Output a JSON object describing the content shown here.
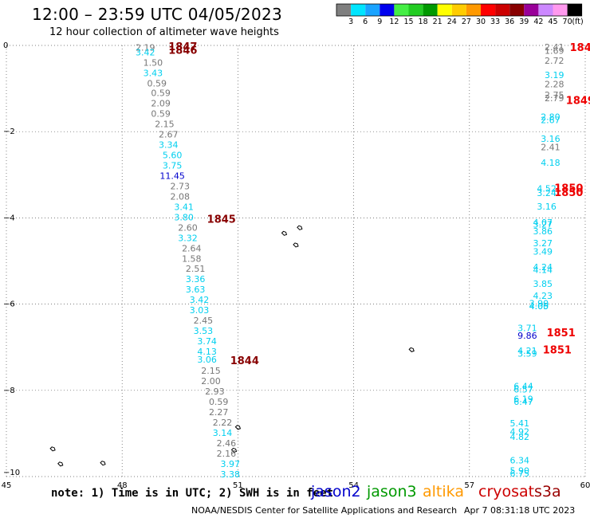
{
  "title": "12:00 – 23:59 UTC 04/05/2023",
  "subtitle": "12 hour collection of altimeter wave heights",
  "note": "note: 1) Time is in UTC; 2) SWH is in feet",
  "satellites": [
    {
      "name": "jason2",
      "color": "#0000cc"
    },
    {
      "name": "jason3",
      "color": "#009900"
    },
    {
      "name": "altika",
      "color": "#ff9900"
    },
    {
      "name": "cryosat",
      "color": "#cc0000"
    },
    {
      "name": "s3a",
      "color": "#990000"
    }
  ],
  "credit": "NOAA/NESDIS Center for Satellite Applications and Research",
  "timestamp": "Apr  7 08:31:18 UTC 2023",
  "colors": {
    "gray_values": "#777777",
    "cyan_values": "#00cfef",
    "blue_values": "#0000cc",
    "time_red": "#ee0000",
    "time_darkred": "#880000",
    "land": "#000000",
    "grid": "#555555"
  },
  "legend": {
    "unit": "(ft)",
    "bins": [
      {
        "label": "3",
        "color": "#7f7f7f"
      },
      {
        "label": "6",
        "color": "#00e5ff"
      },
      {
        "label": "9",
        "color": "#1aa3ff"
      },
      {
        "label": "12",
        "color": "#0000ee"
      },
      {
        "label": "15",
        "color": "#44ee44"
      },
      {
        "label": "18",
        "color": "#22cc22"
      },
      {
        "label": "21",
        "color": "#009900"
      },
      {
        "label": "24",
        "color": "#ffff00"
      },
      {
        "label": "27",
        "color": "#ffcc00"
      },
      {
        "label": "30",
        "color": "#ff9900"
      },
      {
        "label": "33",
        "color": "#ff0000"
      },
      {
        "label": "36",
        "color": "#cc0000"
      },
      {
        "label": "39",
        "color": "#880000"
      },
      {
        "label": "42",
        "color": "#990099"
      },
      {
        "label": "45",
        "color": "#cc88ff"
      },
      {
        "label": "70",
        "color": "#ff99ee"
      },
      {
        "label": "",
        "color": "#000000"
      }
    ]
  },
  "chart_data": {
    "type": "scatter",
    "xlim": [
      45,
      60
    ],
    "ylim": [
      -10,
      0
    ],
    "x_ticks": [
      {
        "v": 45,
        "label": "45"
      },
      {
        "v": 48,
        "label": "48"
      },
      {
        "v": 51,
        "label": "51"
      },
      {
        "v": 54,
        "label": "54"
      },
      {
        "v": 57,
        "label": "57"
      },
      {
        "v": 60,
        "label": "60"
      }
    ],
    "y_ticks": [
      {
        "v": 0,
        "label": "0"
      },
      {
        "v": -2,
        "label": "−2"
      },
      {
        "v": -4,
        "label": "−4"
      },
      {
        "v": -6,
        "label": "−6"
      },
      {
        "v": -8,
        "label": "−8"
      },
      {
        "v": -10,
        "label": "−10"
      }
    ],
    "grid": true,
    "tracks": [
      {
        "points": [
          {
            "lon": 48.6,
            "lat": -0.05,
            "v": "2.19",
            "c": "gray"
          },
          {
            "lon": 48.6,
            "lat": -0.16,
            "v": "3.42",
            "c": "cyan"
          },
          {
            "lon": 48.8,
            "lat": -0.4,
            "v": "1.50",
            "c": "gray"
          },
          {
            "lon": 48.8,
            "lat": -0.64,
            "v": "3.43",
            "c": "cyan"
          },
          {
            "lon": 48.9,
            "lat": -0.88,
            "v": "0.59",
            "c": "gray"
          },
          {
            "lon": 49.0,
            "lat": -1.1,
            "v": "0.59",
            "c": "gray"
          },
          {
            "lon": 49.0,
            "lat": -1.34,
            "v": "2.09",
            "c": "gray"
          },
          {
            "lon": 49.0,
            "lat": -1.58,
            "v": "0.59",
            "c": "gray"
          },
          {
            "lon": 49.1,
            "lat": -1.82,
            "v": "2.15",
            "c": "gray"
          },
          {
            "lon": 49.2,
            "lat": -2.06,
            "v": "2.67",
            "c": "gray"
          },
          {
            "lon": 49.2,
            "lat": -2.3,
            "v": "3.34",
            "c": "cyan"
          },
          {
            "lon": 49.3,
            "lat": -2.54,
            "v": "5.60",
            "c": "cyan"
          },
          {
            "lon": 49.3,
            "lat": -2.78,
            "v": "3.75",
            "c": "cyan"
          },
          {
            "lon": 49.3,
            "lat": -3.02,
            "v": "11.45",
            "c": "blue"
          },
          {
            "lon": 49.5,
            "lat": -3.26,
            "v": "2.73",
            "c": "gray"
          },
          {
            "lon": 49.5,
            "lat": -3.5,
            "v": "2.08",
            "c": "gray"
          },
          {
            "lon": 49.6,
            "lat": -3.74,
            "v": "3.41",
            "c": "cyan"
          },
          {
            "lon": 49.6,
            "lat": -3.98,
            "v": "3.80",
            "c": "cyan"
          },
          {
            "lon": 49.7,
            "lat": -4.22,
            "v": "2.60",
            "c": "gray"
          },
          {
            "lon": 49.7,
            "lat": -4.46,
            "v": "3.32",
            "c": "cyan"
          },
          {
            "lon": 49.8,
            "lat": -4.7,
            "v": "2.64",
            "c": "gray"
          },
          {
            "lon": 49.8,
            "lat": -4.94,
            "v": "1.58",
            "c": "gray"
          },
          {
            "lon": 49.9,
            "lat": -5.18,
            "v": "2.51",
            "c": "gray"
          },
          {
            "lon": 49.9,
            "lat": -5.42,
            "v": "3.36",
            "c": "cyan"
          },
          {
            "lon": 49.9,
            "lat": -5.66,
            "v": "3.63",
            "c": "cyan"
          },
          {
            "lon": 50.0,
            "lat": -5.9,
            "v": "3.42",
            "c": "cyan"
          },
          {
            "lon": 50.0,
            "lat": -6.14,
            "v": "3.03",
            "c": "cyan"
          },
          {
            "lon": 50.1,
            "lat": -6.38,
            "v": "2.45",
            "c": "gray"
          },
          {
            "lon": 50.1,
            "lat": -6.62,
            "v": "3.53",
            "c": "cyan"
          },
          {
            "lon": 50.2,
            "lat": -6.86,
            "v": "3.74",
            "c": "cyan"
          },
          {
            "lon": 50.2,
            "lat": -7.1,
            "v": "4.13",
            "c": "cyan"
          },
          {
            "lon": 50.2,
            "lat": -7.28,
            "v": "3.06",
            "c": "cyan"
          },
          {
            "lon": 50.3,
            "lat": -7.54,
            "v": "2.15",
            "c": "gray"
          },
          {
            "lon": 50.3,
            "lat": -7.78,
            "v": "2.00",
            "c": "gray"
          },
          {
            "lon": 50.4,
            "lat": -8.02,
            "v": "2.93",
            "c": "gray"
          },
          {
            "lon": 50.5,
            "lat": -8.26,
            "v": "0.59",
            "c": "gray"
          },
          {
            "lon": 50.5,
            "lat": -8.5,
            "v": "2.27",
            "c": "gray"
          },
          {
            "lon": 50.6,
            "lat": -8.74,
            "v": "2.22",
            "c": "gray"
          },
          {
            "lon": 50.6,
            "lat": -8.98,
            "v": "3.14",
            "c": "cyan"
          },
          {
            "lon": 50.7,
            "lat": -9.22,
            "v": "2.46",
            "c": "gray"
          },
          {
            "lon": 50.7,
            "lat": -9.46,
            "v": "2.16",
            "c": "gray"
          },
          {
            "lon": 50.8,
            "lat": -9.7,
            "v": "3.97",
            "c": "cyan"
          },
          {
            "lon": 50.8,
            "lat": -9.94,
            "v": "3.38",
            "c": "cyan"
          }
        ]
      },
      {
        "points": [
          {
            "lon": 59.2,
            "lat": -0.04,
            "v": "2.41",
            "c": "gray"
          },
          {
            "lon": 59.2,
            "lat": -0.12,
            "v": "1.69",
            "c": "gray"
          },
          {
            "lon": 59.2,
            "lat": -0.35,
            "v": "2.72",
            "c": "gray"
          },
          {
            "lon": 59.2,
            "lat": -0.68,
            "v": "3.19",
            "c": "cyan"
          },
          {
            "lon": 59.2,
            "lat": -0.9,
            "v": "2.28",
            "c": "gray"
          },
          {
            "lon": 59.2,
            "lat": -1.15,
            "v": "2.75",
            "c": "gray"
          },
          {
            "lon": 59.2,
            "lat": -1.22,
            "v": "2.79",
            "c": "gray"
          },
          {
            "lon": 59.1,
            "lat": -1.65,
            "v": "2.80",
            "c": "cyan"
          },
          {
            "lon": 59.1,
            "lat": -1.73,
            "v": "2.67",
            "c": "cyan"
          },
          {
            "lon": 59.1,
            "lat": -2.16,
            "v": "3.16",
            "c": "cyan"
          },
          {
            "lon": 59.1,
            "lat": -2.36,
            "v": "2.41",
            "c": "gray"
          },
          {
            "lon": 59.1,
            "lat": -2.72,
            "v": "4.18",
            "c": "cyan"
          },
          {
            "lon": 59.0,
            "lat": -3.32,
            "v": "4.52",
            "c": "cyan"
          },
          {
            "lon": 59.0,
            "lat": -3.42,
            "v": "3.24",
            "c": "cyan"
          },
          {
            "lon": 59.0,
            "lat": -3.73,
            "v": "3.16",
            "c": "cyan"
          },
          {
            "lon": 58.9,
            "lat": -4.1,
            "v": "4.07",
            "c": "cyan"
          },
          {
            "lon": 58.9,
            "lat": -4.15,
            "v": "3.27",
            "c": "cyan"
          },
          {
            "lon": 58.9,
            "lat": -4.31,
            "v": "3.86",
            "c": "cyan"
          },
          {
            "lon": 58.9,
            "lat": -4.58,
            "v": "3.27",
            "c": "cyan"
          },
          {
            "lon": 58.9,
            "lat": -4.78,
            "v": "3.49",
            "c": "cyan"
          },
          {
            "lon": 58.9,
            "lat": -5.14,
            "v": "4.24",
            "c": "cyan"
          },
          {
            "lon": 58.9,
            "lat": -5.2,
            "v": "4.14",
            "c": "cyan"
          },
          {
            "lon": 58.9,
            "lat": -5.53,
            "v": "3.85",
            "c": "cyan"
          },
          {
            "lon": 58.9,
            "lat": -5.8,
            "v": "4.23",
            "c": "cyan"
          },
          {
            "lon": 58.8,
            "lat": -5.98,
            "v": "3.90",
            "c": "cyan"
          },
          {
            "lon": 58.8,
            "lat": -6.04,
            "v": "4.05",
            "c": "cyan"
          },
          {
            "lon": 58.8,
            "lat": -6.04,
            "v": "4.00",
            "c": "cyan"
          }
        ]
      },
      {
        "points": [
          {
            "lon": 58.5,
            "lat": -6.55,
            "v": "3.71",
            "c": "cyan"
          },
          {
            "lon": 58.5,
            "lat": -6.73,
            "v": "9.86",
            "c": "blue"
          },
          {
            "lon": 58.5,
            "lat": -7.08,
            "v": "4.21",
            "c": "cyan"
          },
          {
            "lon": 58.5,
            "lat": -7.14,
            "v": "3.59",
            "c": "cyan"
          },
          {
            "lon": 58.4,
            "lat": -7.9,
            "v": "6.44",
            "c": "cyan"
          },
          {
            "lon": 58.4,
            "lat": -7.98,
            "v": "6.57",
            "c": "cyan"
          },
          {
            "lon": 58.4,
            "lat": -8.2,
            "v": "6.19",
            "c": "cyan"
          },
          {
            "lon": 58.4,
            "lat": -8.26,
            "v": "6.47",
            "c": "cyan"
          },
          {
            "lon": 58.3,
            "lat": -8.76,
            "v": "5.41",
            "c": "cyan"
          },
          {
            "lon": 58.3,
            "lat": -8.96,
            "v": "4.92",
            "c": "cyan"
          },
          {
            "lon": 58.3,
            "lat": -9.08,
            "v": "4.82",
            "c": "cyan"
          },
          {
            "lon": 58.3,
            "lat": -9.62,
            "v": "6.34",
            "c": "cyan"
          },
          {
            "lon": 58.3,
            "lat": -9.86,
            "v": "5.90",
            "c": "cyan"
          },
          {
            "lon": 58.3,
            "lat": -9.93,
            "v": "6.75",
            "c": "cyan"
          }
        ]
      }
    ],
    "time_labels": [
      {
        "lon": 49.2,
        "lat": -0.02,
        "text": "1847",
        "c": "darkred"
      },
      {
        "lon": 49.2,
        "lat": -0.1,
        "text": "1846",
        "c": "darkred"
      },
      {
        "lon": 50.2,
        "lat": -4.02,
        "text": "1845",
        "c": "darkred"
      },
      {
        "lon": 50.8,
        "lat": -7.3,
        "text": "1844",
        "c": "darkred"
      },
      {
        "lon": 59.6,
        "lat": -0.04,
        "text": "184",
        "c": "red"
      },
      {
        "lon": 59.5,
        "lat": -1.27,
        "text": "1849",
        "c": "red"
      },
      {
        "lon": 59.2,
        "lat": -3.3,
        "text": "1850",
        "c": "red"
      },
      {
        "lon": 59.2,
        "lat": -3.4,
        "text": "1850",
        "c": "red"
      },
      {
        "lon": 59.0,
        "lat": -6.65,
        "text": "1851",
        "c": "red"
      },
      {
        "lon": 58.9,
        "lat": -7.05,
        "text": "1851",
        "c": "red"
      }
    ],
    "islands": [
      {
        "lon": 46.2,
        "lat": -9.35
      },
      {
        "lon": 46.4,
        "lat": -9.7
      },
      {
        "lon": 47.5,
        "lat": -9.68
      },
      {
        "lon": 52.2,
        "lat": -4.35
      },
      {
        "lon": 52.5,
        "lat": -4.62
      },
      {
        "lon": 52.6,
        "lat": -4.22
      },
      {
        "lon": 55.5,
        "lat": -7.05
      },
      {
        "lon": 51.0,
        "lat": -8.85
      },
      {
        "lon": 50.9,
        "lat": -9.38
      }
    ]
  }
}
